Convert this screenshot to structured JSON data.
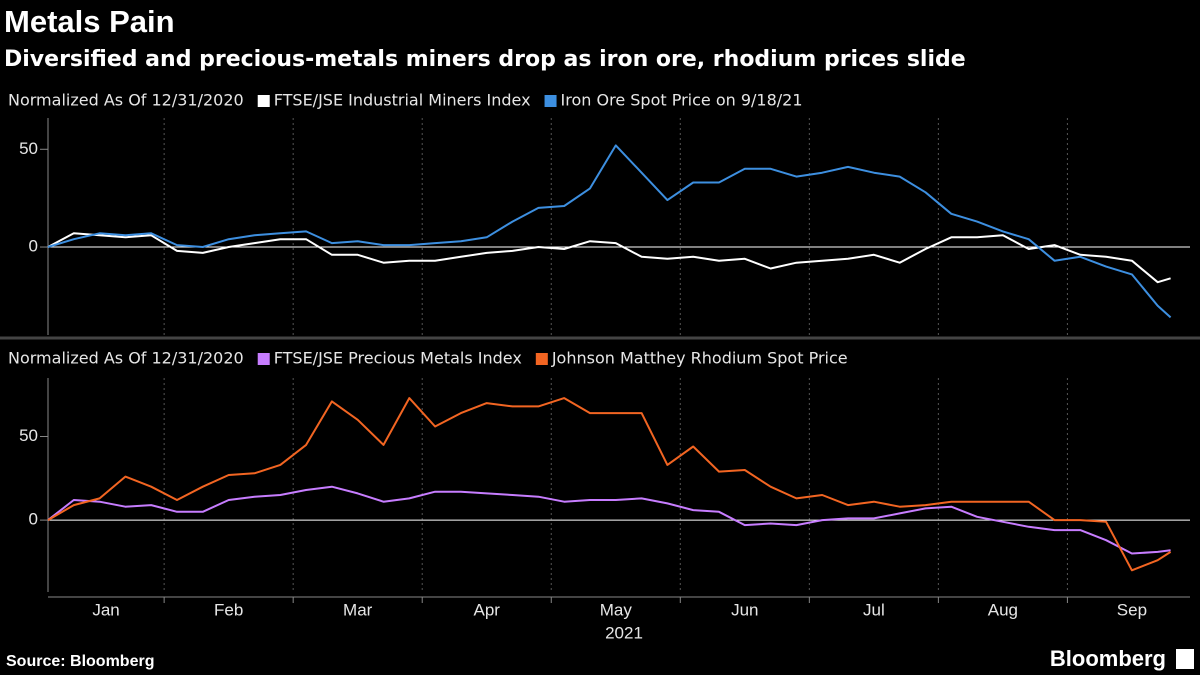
{
  "title": "Metals Pain",
  "subtitle": "Diversified and precious-metals miners drop as iron ore, rhodium prices slide",
  "source": "Source: Bloomberg",
  "brand": "Bloomberg",
  "chart_data": [
    {
      "type": "line",
      "legend_title": "Normalized As Of 12/31/2020",
      "x": [
        1.1,
        1.3,
        1.5,
        1.7,
        1.9,
        2.1,
        2.3,
        2.5,
        2.7,
        2.9,
        3.1,
        3.3,
        3.5,
        3.7,
        3.9,
        4.1,
        4.3,
        4.5,
        4.7,
        4.9,
        5.1,
        5.3,
        5.5,
        5.7,
        5.9,
        6.1,
        6.3,
        6.5,
        6.7,
        6.9,
        7.1,
        7.3,
        7.5,
        7.7,
        7.9,
        8.1,
        8.3,
        8.5,
        8.7,
        8.9,
        9.1,
        9.3,
        9.5,
        9.7,
        9.8
      ],
      "xlim": [
        1.1,
        9.95
      ],
      "xgrid": [
        2,
        3,
        4,
        5,
        6,
        7,
        8,
        9
      ],
      "ylim": [
        -45,
        66
      ],
      "yticks": [
        0,
        50
      ],
      "series": [
        {
          "name": "FTSE/JSE Industrial Miners Index",
          "color": "#ffffff",
          "values": [
            0,
            7,
            6,
            5,
            6,
            -2,
            -3,
            0,
            2,
            4,
            4,
            -4,
            -4,
            -8,
            -7,
            -7,
            -5,
            -3,
            -2,
            0,
            -1,
            3,
            2,
            -5,
            -6,
            -5,
            -7,
            -6,
            -11,
            -8,
            -7,
            -6,
            -4,
            -8,
            -1,
            5,
            5,
            6,
            -1,
            1,
            -4,
            -5,
            -7,
            -18,
            -16
          ]
        },
        {
          "name": "Iron Ore Spot Price on 9/18/21",
          "color": "#3d8fe0",
          "values": [
            0,
            4,
            7,
            6,
            7,
            1,
            0,
            4,
            6,
            7,
            8,
            2,
            3,
            1,
            1,
            2,
            3,
            5,
            13,
            20,
            21,
            30,
            52,
            38,
            24,
            33,
            33,
            40,
            40,
            36,
            38,
            41,
            38,
            36,
            28,
            17,
            13,
            8,
            4,
            -7,
            -5,
            -10,
            -14,
            -30,
            -36
          ]
        }
      ]
    },
    {
      "type": "line",
      "legend_title": "Normalized As Of 12/31/2020",
      "x": [
        1.1,
        1.3,
        1.5,
        1.7,
        1.9,
        2.1,
        2.3,
        2.5,
        2.7,
        2.9,
        3.1,
        3.3,
        3.5,
        3.7,
        3.9,
        4.1,
        4.3,
        4.5,
        4.7,
        4.9,
        5.1,
        5.3,
        5.5,
        5.7,
        5.9,
        6.1,
        6.3,
        6.5,
        6.7,
        6.9,
        7.1,
        7.3,
        7.5,
        7.7,
        7.9,
        8.1,
        8.3,
        8.5,
        8.7,
        8.9,
        9.1,
        9.3,
        9.5,
        9.7,
        9.8
      ],
      "xlim": [
        1.1,
        9.95
      ],
      "xgrid": [
        2,
        3,
        4,
        5,
        6,
        7,
        8,
        9
      ],
      "xticks": [
        {
          "value": 1.55,
          "label": "Jan"
        },
        {
          "value": 2.5,
          "label": "Feb"
        },
        {
          "value": 3.5,
          "label": "Mar"
        },
        {
          "value": 4.5,
          "label": "Apr"
        },
        {
          "value": 5.5,
          "label": "May"
        },
        {
          "value": 6.5,
          "label": "Jun"
        },
        {
          "value": 7.5,
          "label": "Jul"
        },
        {
          "value": 8.5,
          "label": "Aug"
        },
        {
          "value": 9.5,
          "label": "Sep"
        }
      ],
      "xlabel": "2021",
      "ylim": [
        -43,
        85
      ],
      "yticks": [
        0,
        50
      ],
      "series": [
        {
          "name": "FTSE/JSE Precious Metals Index",
          "color": "#c77dff",
          "values": [
            0,
            12,
            11,
            8,
            9,
            5,
            5,
            12,
            14,
            15,
            18,
            20,
            16,
            11,
            13,
            17,
            17,
            16,
            15,
            14,
            11,
            12,
            12,
            13,
            10,
            6,
            5,
            -3,
            -2,
            -3,
            0,
            1,
            1,
            4,
            7,
            8,
            2,
            -1,
            -4,
            -6,
            -6,
            -12,
            -20,
            -19,
            -18
          ]
        },
        {
          "name": "Johnson Matthey Rhodium Spot Price",
          "color": "#f26522",
          "values": [
            0,
            9,
            13,
            26,
            20,
            12,
            20,
            27,
            28,
            33,
            45,
            71,
            60,
            45,
            73,
            56,
            64,
            70,
            68,
            68,
            73,
            64,
            64,
            64,
            33,
            44,
            29,
            30,
            20,
            13,
            15,
            9,
            11,
            8,
            9,
            11,
            11,
            11,
            11,
            0,
            0,
            -1,
            -30,
            -24,
            -19
          ]
        }
      ]
    }
  ]
}
